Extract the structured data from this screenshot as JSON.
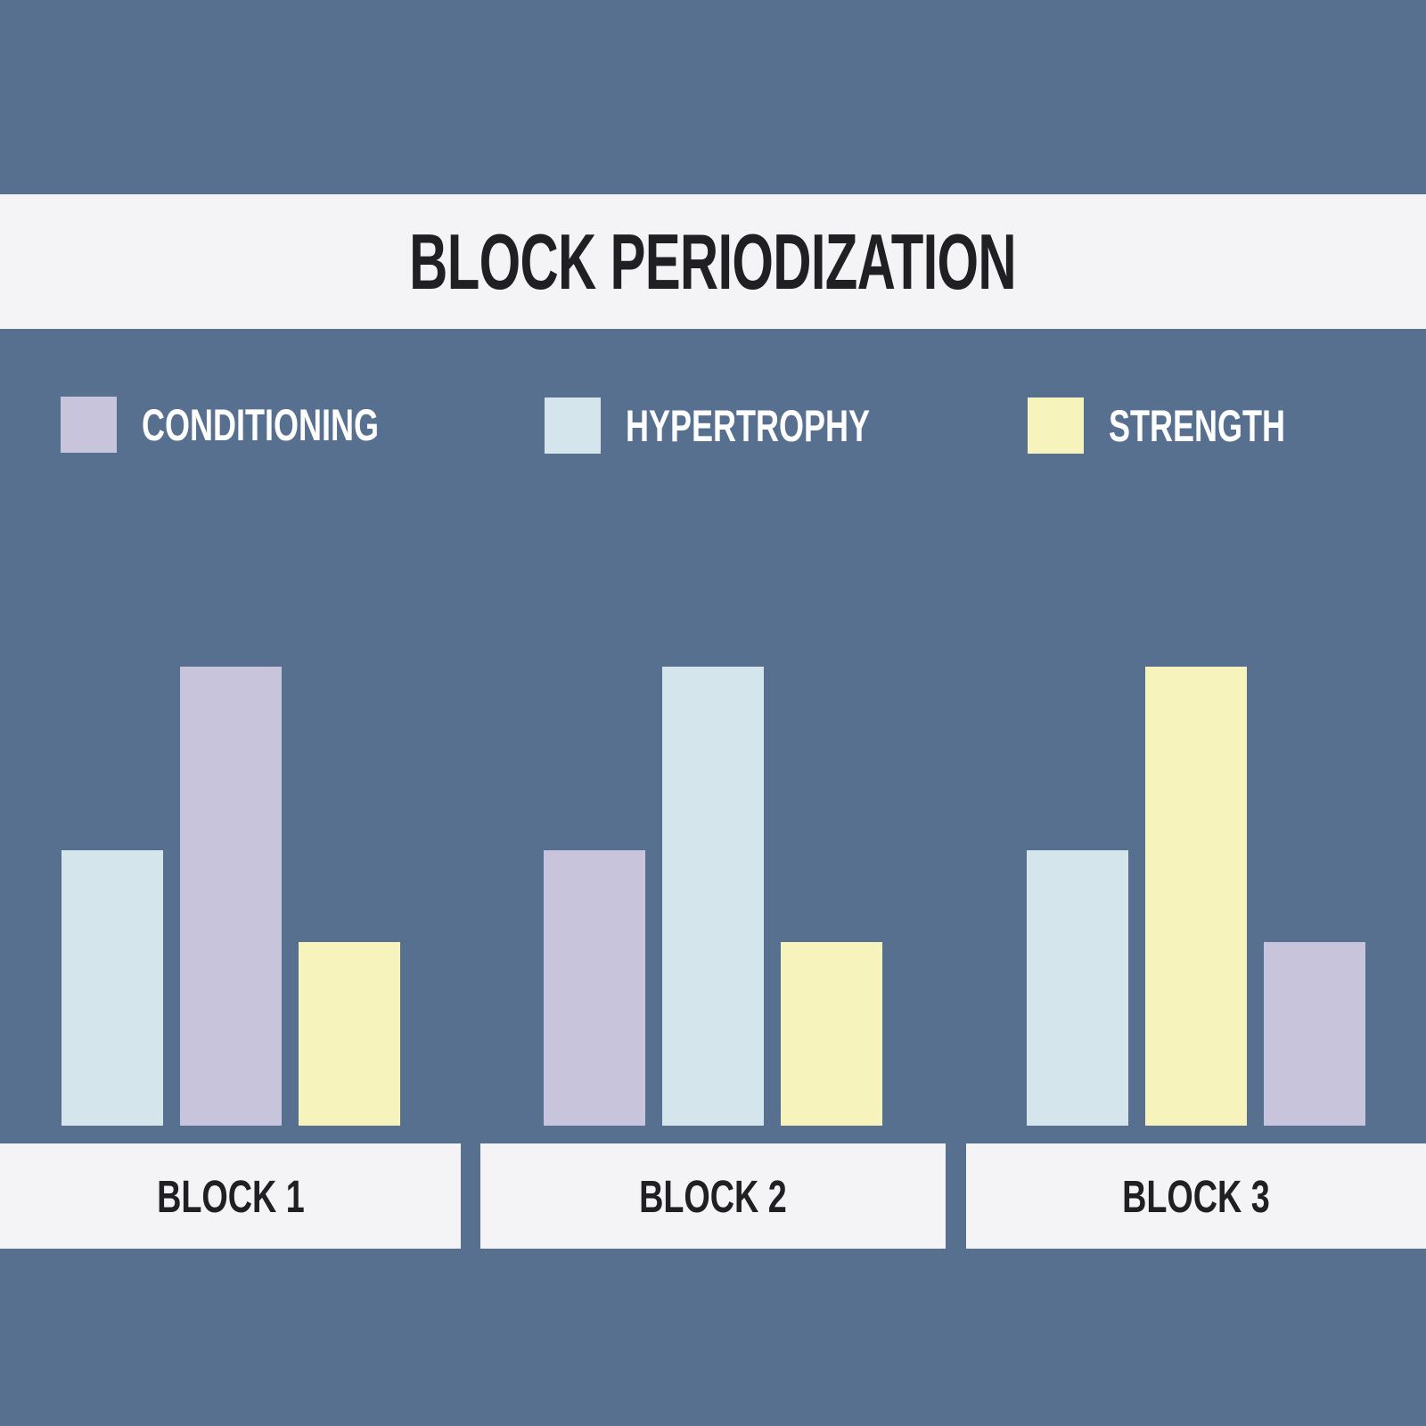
{
  "title": "BLOCK PERIODIZATION",
  "legend": {
    "items": [
      {
        "id": "conditioning",
        "label": "CONDITIONING",
        "color": "#c8c4dc"
      },
      {
        "id": "hypertrophy",
        "label": "HYPERTROPHY",
        "color": "#d4e6ec"
      },
      {
        "id": "strength",
        "label": "STRENGTH",
        "color": "#f6f3bc"
      }
    ]
  },
  "chart_data": {
    "type": "bar",
    "title": "BLOCK PERIODIZATION",
    "categories": [
      "BLOCK 1",
      "BLOCK 2",
      "BLOCK 3"
    ],
    "series": [
      {
        "name": "CONDITIONING",
        "values": [
          5,
          3,
          2
        ]
      },
      {
        "name": "HYPERTROPHY",
        "values": [
          3,
          5,
          3
        ]
      },
      {
        "name": "STRENGTH",
        "values": [
          2,
          2,
          5
        ]
      }
    ],
    "ylim": [
      0,
      5
    ],
    "grid": false,
    "legend_position": "top",
    "value_note": "relative emphasis, no numeric axis shown",
    "blocks": [
      {
        "label": "BLOCK 1",
        "bars": [
          {
            "series": "hypertrophy",
            "value": 3
          },
          {
            "series": "conditioning",
            "value": 5
          },
          {
            "series": "strength",
            "value": 2
          }
        ]
      },
      {
        "label": "BLOCK 2",
        "bars": [
          {
            "series": "conditioning",
            "value": 3
          },
          {
            "series": "hypertrophy",
            "value": 5
          },
          {
            "series": "strength",
            "value": 2
          }
        ]
      },
      {
        "label": "BLOCK 3",
        "bars": [
          {
            "series": "hypertrophy",
            "value": 3
          },
          {
            "series": "strength",
            "value": 5
          },
          {
            "series": "conditioning",
            "value": 2
          }
        ]
      }
    ]
  },
  "colors": {
    "background": "#57708f",
    "panel": "#f4f4f6",
    "text_dark": "#202024",
    "text_light": "#ffffff"
  }
}
